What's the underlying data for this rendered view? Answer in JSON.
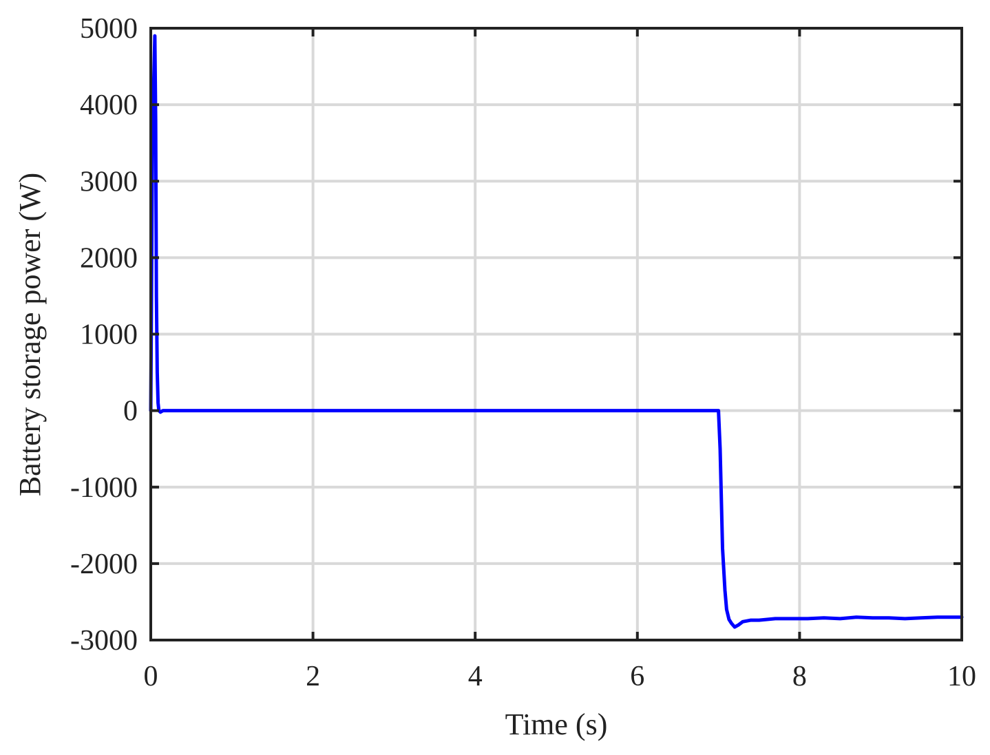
{
  "chart_data": {
    "type": "line",
    "title": "",
    "xlabel": "Time (s)",
    "ylabel": "Battery storage power (W)",
    "xlim": [
      0,
      10
    ],
    "ylim": [
      -3000,
      5000
    ],
    "x_ticks": [
      0,
      2,
      4,
      6,
      8,
      10
    ],
    "x_tick_labels": [
      "0",
      "2",
      "4",
      "6",
      "8",
      "10"
    ],
    "y_ticks": [
      -3000,
      -2000,
      -1000,
      0,
      1000,
      2000,
      3000,
      4000,
      5000
    ],
    "y_tick_labels": [
      "-3000",
      "-2000",
      "-1000",
      "0",
      "1000",
      "2000",
      "3000",
      "4000",
      "5000"
    ],
    "grid": true,
    "legend": "none",
    "line_color": "#0000ff",
    "grid_color": "#d9d9d9",
    "series": [
      {
        "x": [
          0,
          0.02,
          0.05,
          0.06,
          0.07,
          0.08,
          0.09,
          0.1,
          0.12,
          0.15,
          0.5,
          1.0,
          2.0,
          3.0,
          4.0,
          5.0,
          6.0,
          6.9,
          7.0,
          7.02,
          7.05,
          7.08,
          7.1,
          7.13,
          7.16,
          7.2,
          7.25,
          7.3,
          7.4,
          7.5,
          7.7,
          7.9,
          8.1,
          8.3,
          8.5,
          8.7,
          8.9,
          9.1,
          9.3,
          9.5,
          9.7,
          9.9,
          10.0
        ],
        "y": [
          0,
          3500,
          4900,
          3800,
          1500,
          500,
          100,
          0,
          -20,
          0,
          0,
          0,
          0,
          0,
          0,
          0,
          0,
          0,
          0,
          -500,
          -1800,
          -2350,
          -2600,
          -2730,
          -2780,
          -2830,
          -2800,
          -2760,
          -2740,
          -2740,
          -2720,
          -2720,
          -2720,
          -2710,
          -2720,
          -2700,
          -2710,
          -2710,
          -2720,
          -2710,
          -2700,
          -2700,
          -2700
        ]
      }
    ]
  }
}
